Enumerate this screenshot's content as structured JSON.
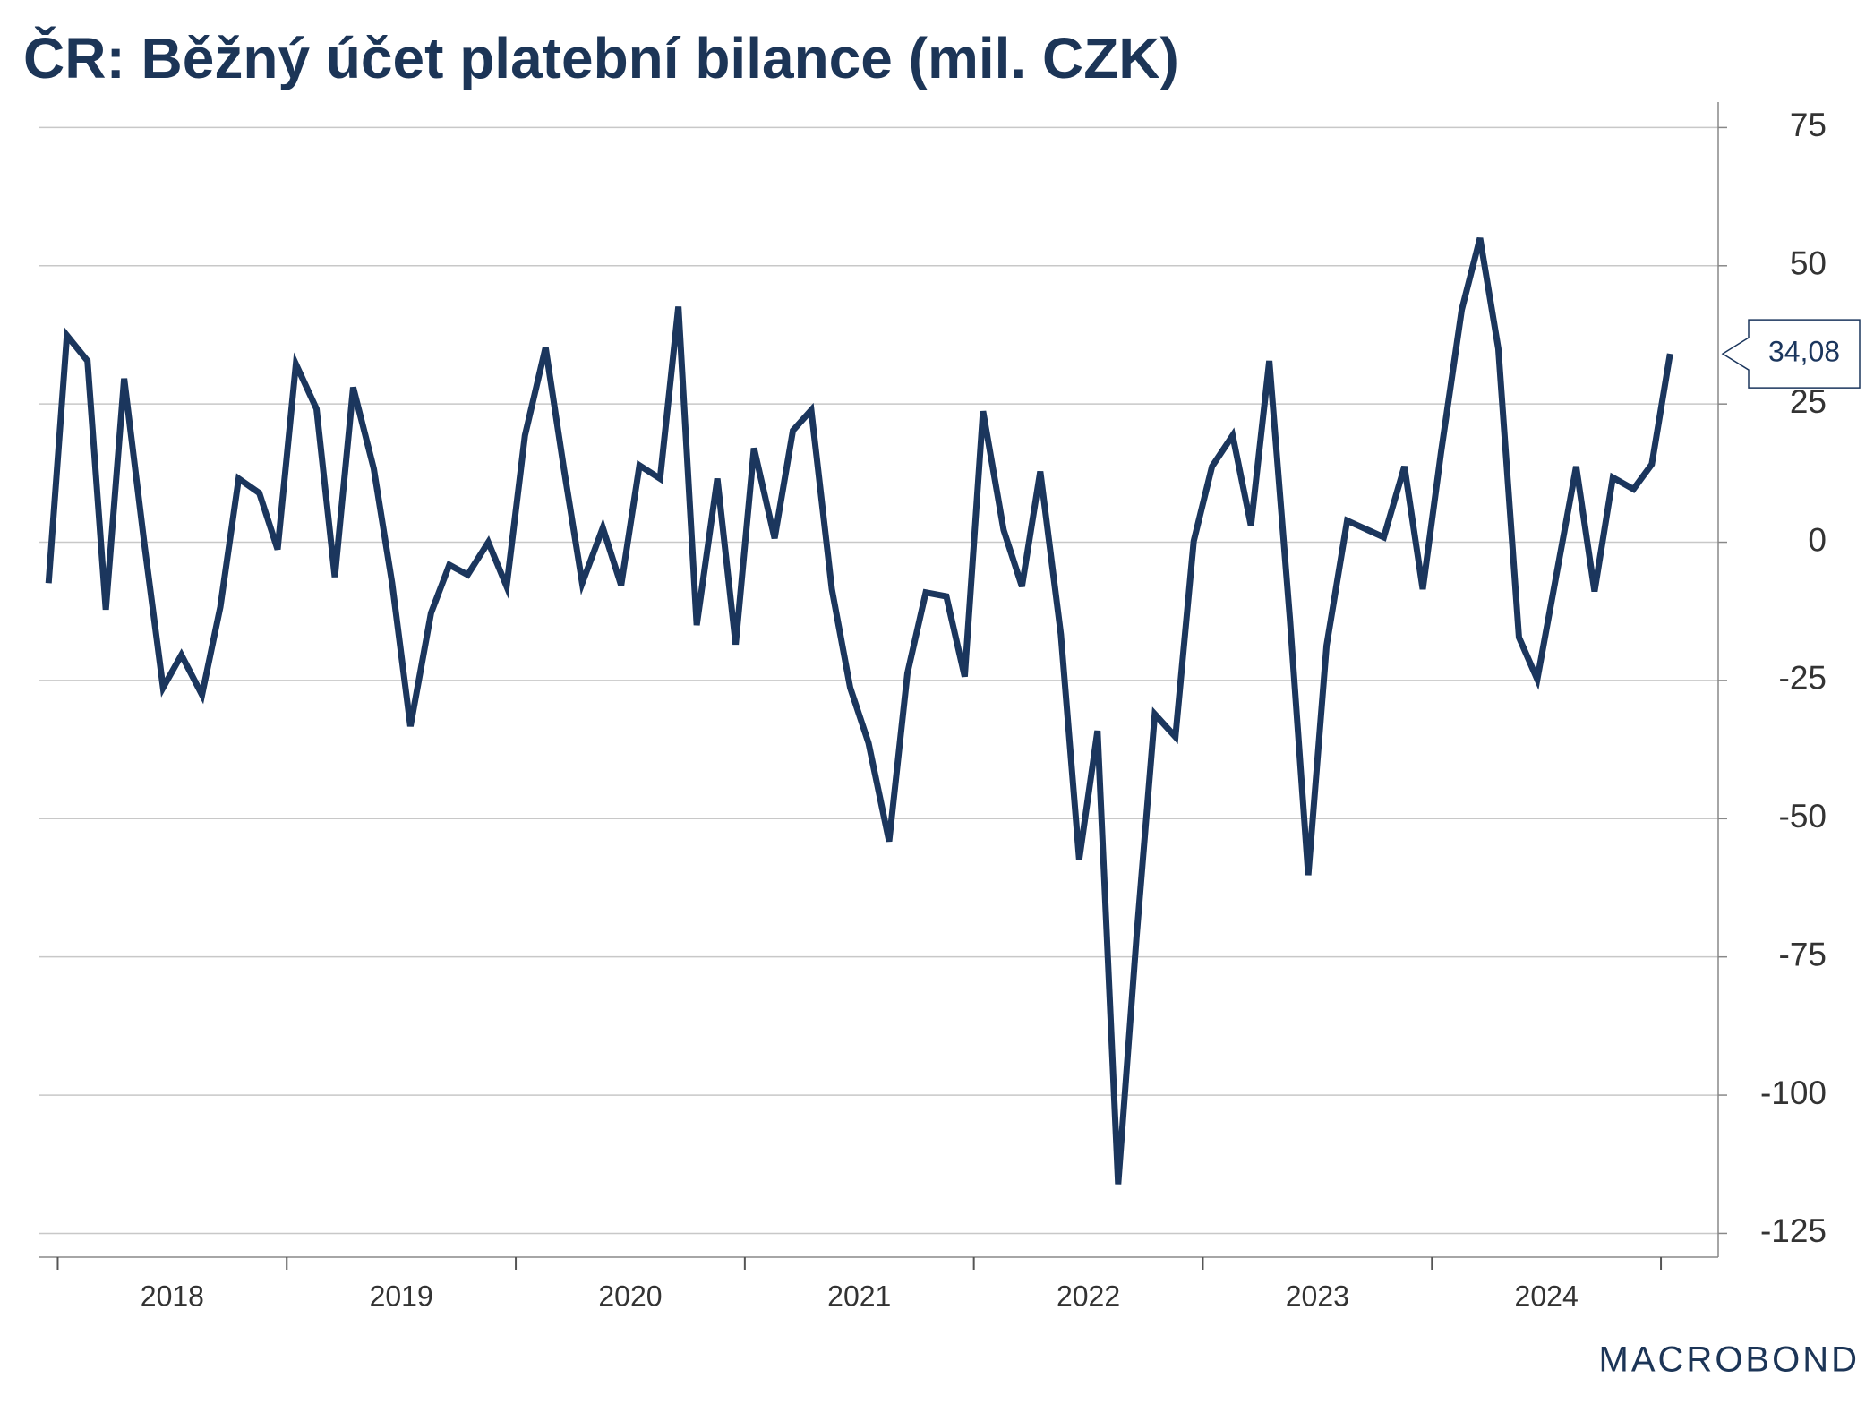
{
  "chart_data": {
    "type": "line",
    "title": "ČR: Běžný účet platební bilance (mil. CZK)",
    "x": [
      2017.96,
      2018.04,
      2018.13,
      2018.21,
      2018.29,
      2018.38,
      2018.46,
      2018.54,
      2018.63,
      2018.71,
      2018.79,
      2018.88,
      2018.96,
      2019.04,
      2019.13,
      2019.21,
      2019.29,
      2019.38,
      2019.46,
      2019.54,
      2019.63,
      2019.71,
      2019.79,
      2019.88,
      2019.96,
      2020.04,
      2020.13,
      2020.21,
      2020.29,
      2020.38,
      2020.46,
      2020.54,
      2020.63,
      2020.71,
      2020.79,
      2020.88,
      2020.96,
      2021.04,
      2021.13,
      2021.21,
      2021.29,
      2021.38,
      2021.46,
      2021.54,
      2021.63,
      2021.71,
      2021.79,
      2021.88,
      2021.96,
      2022.04,
      2022.13,
      2022.21,
      2022.29,
      2022.38,
      2022.46,
      2022.54,
      2022.63,
      2022.71,
      2022.79,
      2022.88,
      2022.96,
      2023.04,
      2023.13,
      2023.21,
      2023.29,
      2023.38,
      2023.46,
      2023.54,
      2023.63,
      2023.71,
      2023.79,
      2023.88,
      2023.96,
      2024.04,
      2024.13,
      2024.21,
      2024.29,
      2024.38,
      2024.46,
      2024.54,
      2024.63,
      2024.71,
      2024.79,
      2024.88,
      2024.96,
      2025.04
    ],
    "series": [
      {
        "color": "#1b365d",
        "values": [
          -7.4,
          37.4,
          32.8,
          -12.2,
          29.6,
          -0.9,
          -26.3,
          -20.4,
          -27.6,
          -11.7,
          11.5,
          8.9,
          -1.3,
          32.2,
          24.1,
          -6.3,
          28.0,
          13.3,
          -7.4,
          -33.3,
          -12.8,
          -4.1,
          -5.9,
          0,
          -8.0,
          19.3,
          35.2,
          13.3,
          -7.4,
          2.6,
          -7.8,
          13.9,
          11.5,
          42.6,
          -15.0,
          11.5,
          -18.5,
          17.0,
          0.7,
          20.2,
          23.9,
          -8.5,
          -26.3,
          -36.3,
          -54.1,
          -23.7,
          -9.1,
          -9.8,
          -24.3,
          23.7,
          2.2,
          -8.0,
          12.8,
          -16.7,
          -57.4,
          -34.1,
          -116.1,
          -71.5,
          -31.1,
          -35.2,
          0.2,
          13.7,
          19.3,
          3.0,
          32.8,
          -13.9,
          -60.2,
          -18.7,
          3.9,
          2.4,
          0.9,
          13.7,
          -8.5,
          16.3,
          42.0,
          55.0,
          35.0,
          -17.2,
          -24.8,
          -6.7,
          13.7,
          -8.9,
          11.7,
          9.6,
          14.1,
          34.08
        ],
        "last_value_label": "34,08"
      }
    ],
    "xlim": [
      2017.92,
      2025.25
    ],
    "xticks": [
      {
        "value": 2018.5,
        "label": "2018"
      },
      {
        "value": 2019.5,
        "label": "2019"
      },
      {
        "value": 2020.5,
        "label": "2020"
      },
      {
        "value": 2021.5,
        "label": "2021"
      },
      {
        "value": 2022.5,
        "label": "2022"
      },
      {
        "value": 2023.5,
        "label": "2023"
      },
      {
        "value": 2024.5,
        "label": "2024"
      }
    ],
    "x_boundaries": [
      2018,
      2019,
      2020,
      2021,
      2022,
      2023,
      2024,
      2025
    ],
    "ylim": [
      -129.3,
      79.6
    ],
    "yticks": [
      -125,
      -100,
      -75,
      -50,
      -25,
      0,
      25,
      50,
      75
    ],
    "grid": true,
    "source": "MACROBOND"
  }
}
